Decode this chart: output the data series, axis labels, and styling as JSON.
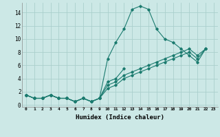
{
  "xlabel": "Humidex (Indice chaleur)",
  "ylabel": "",
  "bg_color": "#cce8e6",
  "grid_color": "#aacfcc",
  "line_color": "#1a7a6e",
  "xlim": [
    -0.5,
    23.5
  ],
  "ylim": [
    -0.3,
    15.5
  ],
  "xticks": [
    0,
    1,
    2,
    3,
    4,
    5,
    6,
    7,
    8,
    9,
    10,
    11,
    12,
    13,
    14,
    15,
    16,
    17,
    18,
    19,
    20,
    21,
    22,
    23
  ],
  "yticks": [
    0,
    2,
    4,
    6,
    8,
    10,
    12,
    14
  ],
  "series": [
    [
      1.5,
      1.0,
      1.0,
      1.5,
      1.0,
      1.0,
      0.5,
      1.0,
      0.5,
      1.0,
      7.0,
      9.5,
      11.5,
      14.5,
      15.0,
      14.5,
      11.5,
      10.0,
      9.5,
      8.5,
      7.5,
      6.5,
      8.5,
      null
    ],
    [
      1.5,
      1.0,
      1.0,
      1.5,
      1.0,
      1.0,
      0.5,
      1.0,
      0.5,
      1.0,
      3.5,
      4.0,
      5.5,
      null,
      null,
      null,
      null,
      null,
      null,
      null,
      null,
      null,
      null,
      null
    ],
    [
      1.5,
      1.0,
      1.0,
      1.5,
      1.0,
      1.0,
      0.5,
      1.0,
      0.5,
      1.0,
      3.0,
      3.5,
      4.5,
      5.0,
      5.5,
      6.0,
      6.5,
      7.0,
      7.5,
      8.0,
      8.5,
      7.5,
      8.5,
      null
    ],
    [
      1.5,
      1.0,
      1.0,
      1.5,
      1.0,
      1.0,
      0.5,
      1.0,
      0.5,
      1.0,
      2.5,
      3.0,
      4.0,
      4.5,
      5.0,
      5.5,
      6.0,
      6.5,
      7.0,
      7.5,
      8.0,
      7.0,
      8.5,
      null
    ]
  ]
}
